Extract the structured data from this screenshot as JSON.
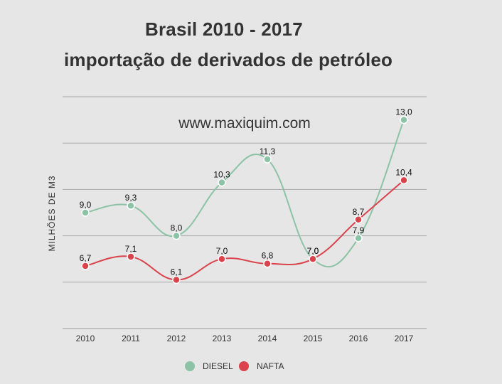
{
  "title_line1": "Brasil 2010 - 2017",
  "title_line2": "importação de derivados de petróleo",
  "watermark": "www.maxiquim.com",
  "chart_data": {
    "type": "line",
    "title": "Brasil 2010 - 2017 importação de derivados de petróleo",
    "xlabel": "",
    "ylabel": "MILHÕES DE M3",
    "x": [
      "2010",
      "2011",
      "2012",
      "2013",
      "2014",
      "2015",
      "2016",
      "2017"
    ],
    "ylim": [
      4,
      14
    ],
    "grid": true,
    "legend": "bottom",
    "series": [
      {
        "name": "DIESEL",
        "color": "#8cc3a6",
        "values": [
          9.0,
          9.3,
          8.0,
          10.3,
          11.3,
          7.0,
          7.9,
          13.0
        ],
        "labels": [
          "9,0",
          "9,3",
          "8,0",
          "10,3",
          "11,3",
          "7,0",
          "7,9",
          "13,0"
        ]
      },
      {
        "name": "NAFTA",
        "color": "#d9434b",
        "values": [
          6.7,
          7.1,
          6.1,
          7.0,
          6.8,
          7.0,
          8.7,
          10.4
        ],
        "labels": [
          "6,7",
          "7,1",
          "6,1",
          "7,0",
          "6,8",
          "7,0",
          "8,7",
          "10,4"
        ]
      }
    ]
  }
}
